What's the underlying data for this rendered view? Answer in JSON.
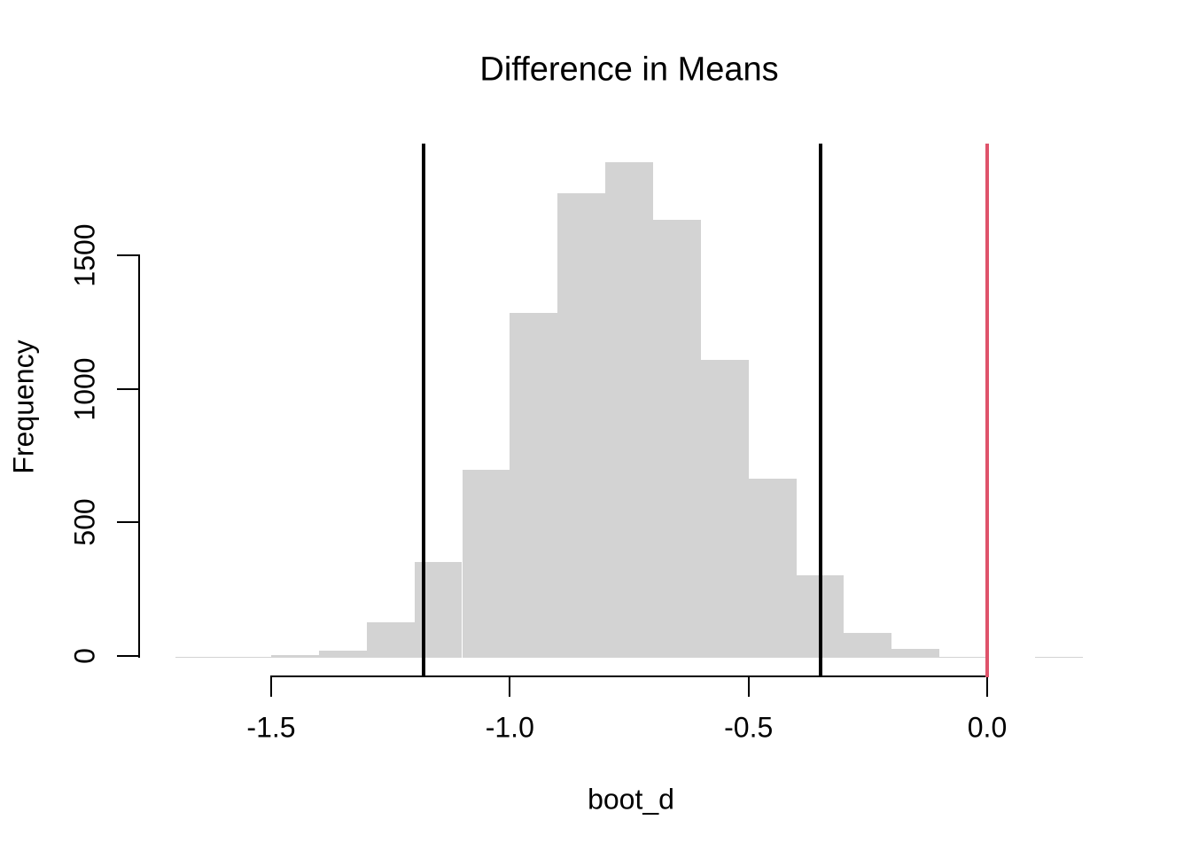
{
  "figure": {
    "title": "Difference in Means",
    "background": "#ffffff"
  },
  "axes": {
    "x": {
      "label": "boot_d",
      "ticks": [
        {
          "value": -1.5,
          "label": "-1.5"
        },
        {
          "value": -1.0,
          "label": "-1.0"
        },
        {
          "value": -0.5,
          "label": "-0.5"
        },
        {
          "value": 0.0,
          "label": "0.0"
        }
      ]
    },
    "y": {
      "label": "Frequency",
      "ticks": [
        {
          "value": 0,
          "label": "0"
        },
        {
          "value": 500,
          "label": "500"
        },
        {
          "value": 1000,
          "label": "1000"
        },
        {
          "value": 1500,
          "label": "1500"
        }
      ]
    }
  },
  "chart_data": {
    "type": "bar",
    "subtype": "histogram",
    "title": "Difference in Means",
    "xlabel": "boot_d",
    "ylabel": "Frequency",
    "xlim": [
      -1.7,
      0.2
    ],
    "ylim": [
      0,
      1500
    ],
    "grid": false,
    "legend": false,
    "bar_color": "#d3d3d3",
    "bin_width": 0.1,
    "bin_edges": [
      -1.7,
      -1.6,
      -1.5,
      -1.4,
      -1.3,
      -1.2,
      -1.1,
      -1.0,
      -0.9,
      -0.8,
      -0.7,
      -0.6,
      -0.5,
      -0.4,
      -0.3,
      -0.2,
      -0.1,
      0.0,
      0.1,
      0.2
    ],
    "counts": [
      1,
      2,
      10,
      26,
      132,
      358,
      705,
      1290,
      1740,
      1855,
      1640,
      1115,
      672,
      308,
      93,
      33,
      2,
      0,
      1
    ],
    "reference_lines": [
      {
        "x": -1.18,
        "color": "#000000",
        "name": "ci-lower-line"
      },
      {
        "x": -0.35,
        "color": "#000000",
        "name": "ci-upper-line"
      },
      {
        "x": 0.0,
        "color": "#df536b",
        "name": "zero-reference-line"
      }
    ]
  }
}
